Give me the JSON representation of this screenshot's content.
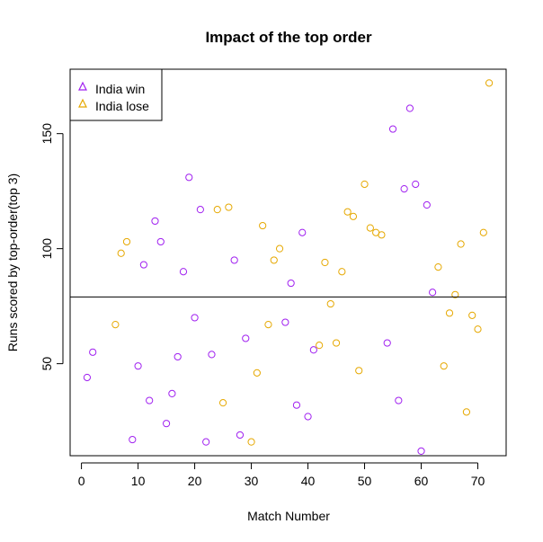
{
  "chart_data": {
    "type": "scatter",
    "title": "Impact of the top order",
    "xlabel": "Match Number",
    "ylabel": "Runs scored by top-order(top 3)",
    "xlim": [
      -2,
      75
    ],
    "ylim": [
      10,
      178
    ],
    "x_ticks": [
      0,
      10,
      20,
      30,
      40,
      50,
      60,
      70
    ],
    "y_ticks": [
      50,
      100,
      150
    ],
    "reference_line_y": 79,
    "legend_position": "top-left",
    "series": [
      {
        "name": "India win",
        "color": "#A020F0",
        "marker": "circle",
        "points": [
          [
            1,
            44
          ],
          [
            2,
            55
          ],
          [
            9,
            17
          ],
          [
            10,
            49
          ],
          [
            11,
            93
          ],
          [
            12,
            34
          ],
          [
            13,
            112
          ],
          [
            14,
            103
          ],
          [
            15,
            24
          ],
          [
            16,
            37
          ],
          [
            17,
            53
          ],
          [
            18,
            90
          ],
          [
            19,
            131
          ],
          [
            20,
            70
          ],
          [
            21,
            117
          ],
          [
            22,
            16
          ],
          [
            23,
            54
          ],
          [
            27,
            95
          ],
          [
            28,
            19
          ],
          [
            29,
            61
          ],
          [
            36,
            68
          ],
          [
            37,
            85
          ],
          [
            38,
            32
          ],
          [
            39,
            107
          ],
          [
            40,
            27
          ],
          [
            41,
            56
          ],
          [
            54,
            59
          ],
          [
            55,
            152
          ],
          [
            56,
            34
          ],
          [
            57,
            126
          ],
          [
            58,
            161
          ],
          [
            59,
            128
          ],
          [
            60,
            12
          ],
          [
            61,
            119
          ],
          [
            62,
            81
          ]
        ]
      },
      {
        "name": "India lose",
        "color": "#E6A800",
        "marker": "circle",
        "points": [
          [
            6,
            67
          ],
          [
            7,
            98
          ],
          [
            8,
            103
          ],
          [
            24,
            117
          ],
          [
            25,
            33
          ],
          [
            26,
            118
          ],
          [
            30,
            16
          ],
          [
            31,
            46
          ],
          [
            32,
            110
          ],
          [
            33,
            67
          ],
          [
            34,
            95
          ],
          [
            35,
            100
          ],
          [
            42,
            58
          ],
          [
            43,
            94
          ],
          [
            44,
            76
          ],
          [
            45,
            59
          ],
          [
            46,
            90
          ],
          [
            47,
            116
          ],
          [
            48,
            114
          ],
          [
            49,
            47
          ],
          [
            50,
            128
          ],
          [
            51,
            109
          ],
          [
            52,
            107
          ],
          [
            53,
            106
          ],
          [
            63,
            92
          ],
          [
            64,
            49
          ],
          [
            65,
            72
          ],
          [
            66,
            80
          ],
          [
            67,
            102
          ],
          [
            68,
            29
          ],
          [
            69,
            71
          ],
          [
            70,
            65
          ],
          [
            71,
            107
          ],
          [
            72,
            172
          ]
        ]
      }
    ]
  }
}
